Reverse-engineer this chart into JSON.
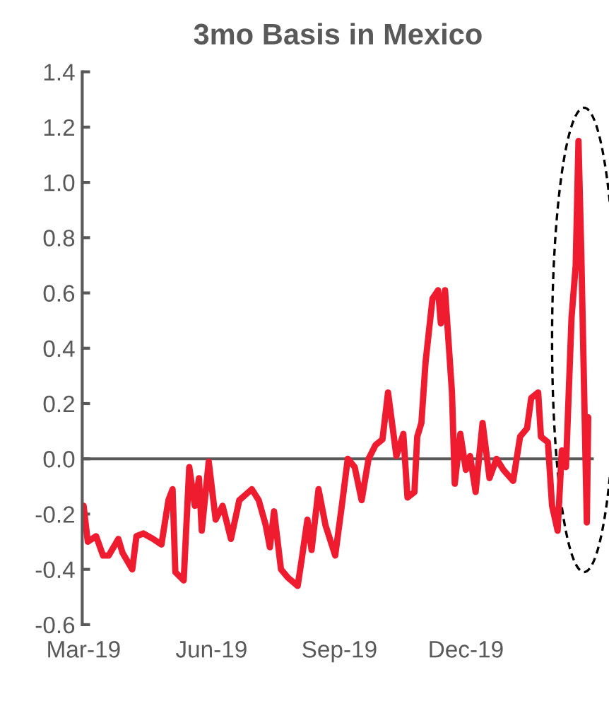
{
  "chart_data": {
    "type": "line",
    "title": "3mo Basis in Mexico",
    "x": [
      "2019-03-01",
      "2019-03-04",
      "2019-03-10",
      "2019-03-15",
      "2019-03-19",
      "2019-03-26",
      "2019-03-29",
      "2019-04-05",
      "2019-04-08",
      "2019-04-13",
      "2019-04-20",
      "2019-04-26",
      "2019-05-01",
      "2019-05-04",
      "2019-05-06",
      "2019-05-12",
      "2019-05-16",
      "2019-05-20",
      "2019-05-23",
      "2019-05-25",
      "2019-05-30",
      "2019-06-04",
      "2019-06-09",
      "2019-06-15",
      "2019-06-21",
      "2019-06-30",
      "2019-07-05",
      "2019-07-10",
      "2019-07-13",
      "2019-07-16",
      "2019-07-21",
      "2019-07-26",
      "2019-08-02",
      "2019-08-05",
      "2019-08-09",
      "2019-08-12",
      "2019-08-17",
      "2019-08-22",
      "2019-08-29",
      "2019-09-03",
      "2019-09-07",
      "2019-09-12",
      "2019-09-17",
      "2019-09-22",
      "2019-09-27",
      "2019-10-02",
      "2019-10-06",
      "2019-10-12",
      "2019-10-17",
      "2019-10-20",
      "2019-10-25",
      "2019-10-27",
      "2019-10-30",
      "2019-11-02",
      "2019-11-07",
      "2019-11-11",
      "2019-11-13",
      "2019-11-16",
      "2019-11-21",
      "2019-11-23",
      "2019-11-27",
      "2019-12-01",
      "2019-12-04",
      "2019-12-08",
      "2019-12-13",
      "2019-12-18",
      "2019-12-23",
      "2019-12-28",
      "2020-01-04",
      "2020-01-09",
      "2020-01-14",
      "2020-01-17",
      "2020-01-22",
      "2020-01-24",
      "2020-01-29",
      "2020-02-01",
      "2020-02-05",
      "2020-02-08",
      "2020-02-11",
      "2020-02-15",
      "2020-02-18",
      "2020-02-20",
      "2020-02-22",
      "2020-02-26",
      "2020-02-27"
    ],
    "series": [
      {
        "color": "#ee1c2e",
        "values": [
          -0.17,
          -0.3,
          -0.28,
          -0.35,
          -0.35,
          -0.29,
          -0.34,
          -0.4,
          -0.28,
          -0.27,
          -0.29,
          -0.31,
          -0.15,
          -0.11,
          -0.41,
          -0.44,
          -0.03,
          -0.17,
          -0.07,
          -0.26,
          -0.01,
          -0.22,
          -0.17,
          -0.29,
          -0.15,
          -0.11,
          -0.15,
          -0.24,
          -0.32,
          -0.19,
          -0.4,
          -0.43,
          -0.46,
          -0.36,
          -0.22,
          -0.33,
          -0.11,
          -0.24,
          -0.35,
          -0.16,
          0.0,
          -0.03,
          -0.15,
          0.0,
          0.05,
          0.07,
          0.24,
          0.01,
          0.09,
          -0.14,
          -0.12,
          0.08,
          0.13,
          0.35,
          0.58,
          0.61,
          0.49,
          0.61,
          0.24,
          -0.09,
          0.09,
          -0.04,
          0.01,
          -0.12,
          0.13,
          -0.07,
          0.0,
          -0.04,
          -0.08,
          0.08,
          0.11,
          0.22,
          0.24,
          0.08,
          0.06,
          -0.17,
          -0.26,
          0.03,
          -0.03,
          0.51,
          0.7,
          1.15,
          0.75,
          -0.23,
          0.15
        ]
      }
    ],
    "xlim": [
      "2019-02-28",
      "2020-03-02"
    ],
    "xticks": [
      {
        "value": "2019-03-01",
        "label": "Mar-19"
      },
      {
        "value": "2019-06-01",
        "label": "Jun-19"
      },
      {
        "value": "2019-09-01",
        "label": "Sep-19"
      },
      {
        "value": "2019-12-01",
        "label": "Dec-19"
      }
    ],
    "ylim": [
      -0.6,
      1.4
    ],
    "yticks": [
      -0.6,
      -0.4,
      -0.2,
      {
        "value": 0,
        "label": "0.0"
      },
      0.2,
      0.4,
      0.6,
      0.8,
      {
        "value": 1,
        "label": "1.0"
      },
      1.2,
      1.4
    ],
    "ref_lines": [
      {
        "axis": "y",
        "value": 0,
        "color": "#595959"
      }
    ],
    "grid": false,
    "legend": false,
    "marker": "none",
    "line_style": "solid"
  }
}
